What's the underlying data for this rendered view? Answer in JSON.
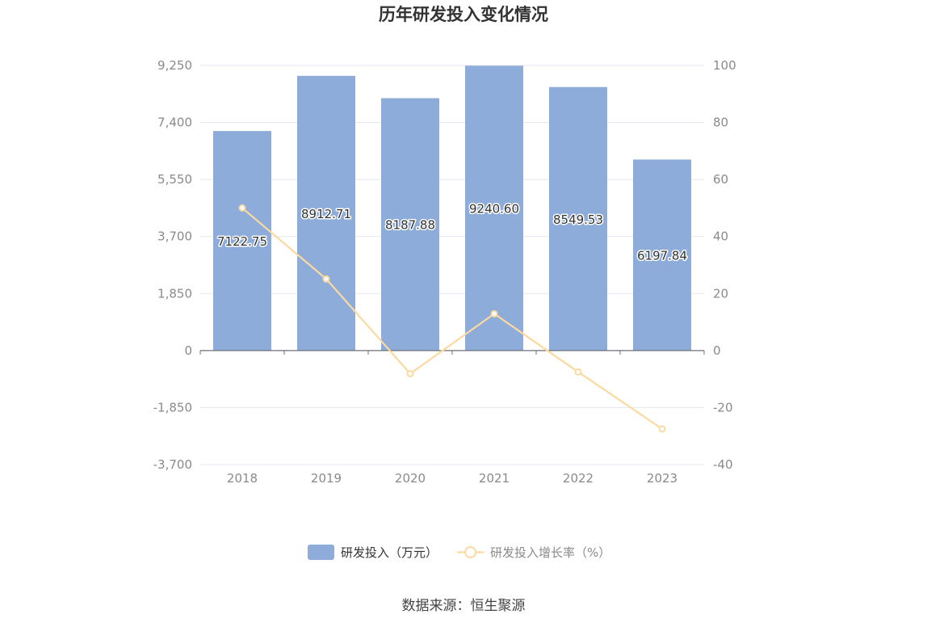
{
  "chart_data": {
    "type": "bar",
    "title": "历年研发投入变化情况",
    "categories": [
      "2018",
      "2019",
      "2020",
      "2021",
      "2022",
      "2023"
    ],
    "series": [
      {
        "name": "研发投入（万元）",
        "type": "bar",
        "axis": "left",
        "color": "#8eacd9",
        "values": [
          7122.75,
          8912.71,
          8187.88,
          9240.6,
          8549.53,
          6197.84
        ],
        "labels": [
          "7122.75",
          "8912.71",
          "8187.88",
          "9240.60",
          "8549.53",
          "6197.84"
        ]
      },
      {
        "name": "研发投入增长率（%）",
        "type": "line",
        "axis": "right",
        "color": "#fbd9a0",
        "values": [
          50.0,
          25.1,
          -8.1,
          12.9,
          -7.5,
          -27.5
        ]
      }
    ],
    "y_left": {
      "ylim": [
        -3700,
        9250
      ],
      "ticks": [
        9250,
        7400,
        5550,
        3700,
        1850,
        0,
        -1850,
        -3700
      ],
      "tick_labels": [
        "9,250",
        "7,400",
        "5,550",
        "3,700",
        "1,850",
        "0",
        "-1,850",
        "-3,700"
      ]
    },
    "y_right": {
      "ylim": [
        -40,
        100
      ],
      "ticks": [
        100,
        80,
        60,
        40,
        20,
        0,
        -20,
        -40
      ],
      "tick_labels": [
        "100",
        "80",
        "60",
        "40",
        "20",
        "0",
        "-20",
        "-40"
      ]
    },
    "grid": true,
    "legend": "bottom"
  },
  "source_text": "数据来源：恒生聚源"
}
